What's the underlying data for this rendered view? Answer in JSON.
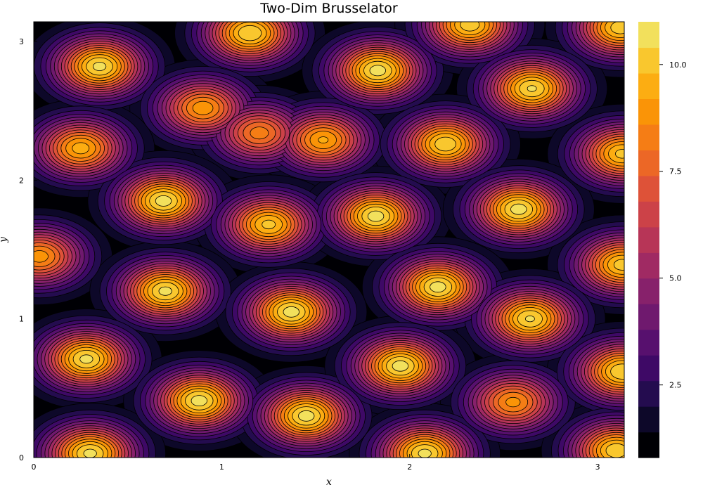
{
  "chart_data": {
    "type": "heatmap",
    "subtype": "filled-contour",
    "title": "Two-Dim Brusselator",
    "xlabel": "x",
    "ylabel": "y",
    "xlim": [
      0,
      3.14159
    ],
    "ylim": [
      0,
      3.14159
    ],
    "x_ticks": [
      0,
      1,
      2,
      3
    ],
    "y_ticks": [
      0,
      1,
      2,
      3
    ],
    "x_tick_labels": [
      "0",
      "1",
      "2",
      "3"
    ],
    "y_tick_labels": [
      "0",
      "1",
      "2",
      "3"
    ],
    "colormap": "inferno",
    "colorbar": {
      "min": 0.8,
      "max": 11.0,
      "ticks": [
        2.5,
        5.0,
        7.5,
        10.0
      ],
      "tick_labels": [
        "2.5",
        "5.0",
        "7.5",
        "10.0"
      ],
      "levels": [
        0.8,
        1.4,
        2.0,
        2.6,
        3.2,
        3.8,
        4.4,
        5.0,
        5.6,
        6.2,
        6.8,
        7.4,
        8.0,
        8.6,
        9.2,
        9.8,
        10.4,
        11.0
      ],
      "colors": [
        "#000004",
        "#0d0829",
        "#240c4f",
        "#3e0966",
        "#57106e",
        "#6f196e",
        "#87216b",
        "#a02a63",
        "#b73557",
        "#cc4248",
        "#de5238",
        "#ec6726",
        "#f57d15",
        "#fa9407",
        "#fcad12",
        "#f9c72e",
        "#f2e05c",
        "#fcffa4"
      ]
    },
    "peaks": [
      {
        "x": 0.35,
        "y": 2.82,
        "value": 10.6
      },
      {
        "x": 1.15,
        "y": 3.06,
        "value": 10.4
      },
      {
        "x": 1.83,
        "y": 2.79,
        "value": 10.7
      },
      {
        "x": 2.32,
        "y": 3.12,
        "value": 10.2
      },
      {
        "x": 3.12,
        "y": 3.1,
        "value": 10.2
      },
      {
        "x": 2.65,
        "y": 2.66,
        "value": 10.5
      },
      {
        "x": 0.9,
        "y": 2.52,
        "value": 9.0
      },
      {
        "x": 1.2,
        "y": 2.34,
        "value": 8.3
      },
      {
        "x": 1.54,
        "y": 2.29,
        "value": 9.3
      },
      {
        "x": 0.25,
        "y": 2.23,
        "value": 9.5
      },
      {
        "x": 2.19,
        "y": 2.26,
        "value": 10.3
      },
      {
        "x": 3.13,
        "y": 2.19,
        "value": 10.0
      },
      {
        "x": 0.69,
        "y": 1.85,
        "value": 10.7
      },
      {
        "x": 1.25,
        "y": 1.68,
        "value": 10.0
      },
      {
        "x": 1.82,
        "y": 1.74,
        "value": 10.7
      },
      {
        "x": 2.58,
        "y": 1.79,
        "value": 10.7
      },
      {
        "x": 0.03,
        "y": 1.45,
        "value": 8.9
      },
      {
        "x": 3.13,
        "y": 1.39,
        "value": 10.1
      },
      {
        "x": 0.7,
        "y": 1.2,
        "value": 10.6
      },
      {
        "x": 1.37,
        "y": 1.05,
        "value": 10.7
      },
      {
        "x": 2.15,
        "y": 1.23,
        "value": 10.7
      },
      {
        "x": 2.64,
        "y": 1.0,
        "value": 10.5
      },
      {
        "x": 0.28,
        "y": 0.71,
        "value": 10.6
      },
      {
        "x": 0.88,
        "y": 0.41,
        "value": 10.7
      },
      {
        "x": 1.45,
        "y": 0.3,
        "value": 10.7
      },
      {
        "x": 1.95,
        "y": 0.66,
        "value": 10.7
      },
      {
        "x": 2.55,
        "y": 0.4,
        "value": 8.8
      },
      {
        "x": 3.13,
        "y": 0.62,
        "value": 10.4
      },
      {
        "x": 0.3,
        "y": 0.03,
        "value": 10.6
      },
      {
        "x": 2.08,
        "y": 0.03,
        "value": 10.6
      },
      {
        "x": 3.1,
        "y": 0.05,
        "value": 10.3
      }
    ],
    "grid": false,
    "legend": "colorbar-right"
  }
}
